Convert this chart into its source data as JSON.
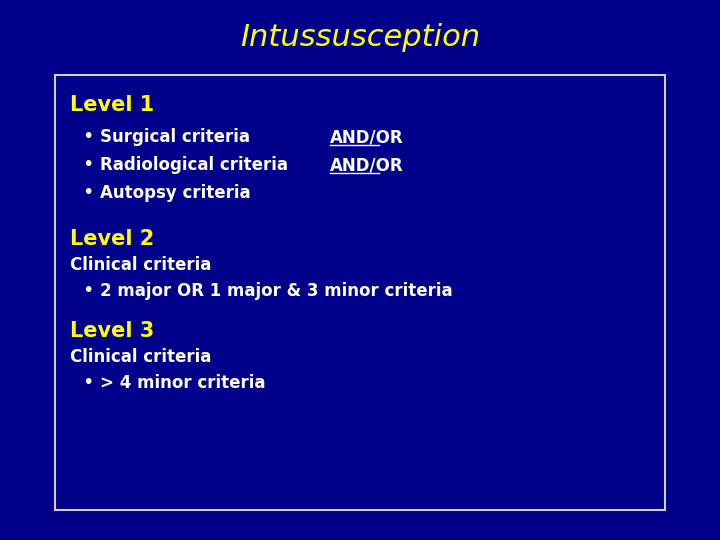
{
  "title": "Intussusception",
  "title_color": "#FFFF00",
  "title_fontsize": 22,
  "bg_color": "#00008B",
  "box_bg_color": "#00008B",
  "box_border_color": "#D0D0D0",
  "white_color": "#FFFFFF",
  "yellow_color": "#FFFF00",
  "level1_header": "Level 1",
  "level1_items": [
    {
      "text": "Surgical criteria",
      "andor": "AND/OR"
    },
    {
      "text": "Radiological criteria",
      "andor": "AND/OR"
    },
    {
      "text": "Autopsy criteria",
      "andor": ""
    }
  ],
  "level2_header": "Level 2",
  "level2_sub": "Clinical criteria",
  "level2_item": "2 major OR 1 major & 3 minor criteria",
  "level3_header": "Level 3",
  "level3_sub": "Clinical criteria",
  "level3_item": "> 4 minor criteria",
  "fontsize_header": 15,
  "fontsize_body": 12,
  "fontsize_andor": 12
}
